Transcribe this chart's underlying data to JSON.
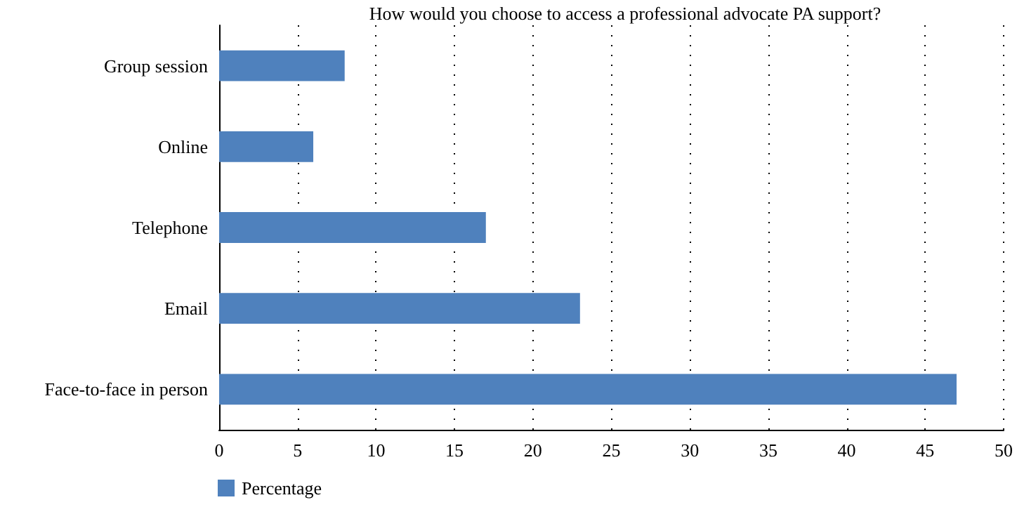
{
  "chart_data": {
    "type": "bar",
    "orientation": "horizontal",
    "title": "How would you choose to access a professional advocate PA support?",
    "categories": [
      "Group session",
      "Online",
      "Telephone",
      "Email",
      "Face-to-face in person"
    ],
    "series": [
      {
        "name": "Percentage",
        "color": "#4f81bd",
        "values": [
          8,
          6,
          17,
          23,
          47
        ]
      }
    ],
    "xlim": [
      0,
      50
    ],
    "xticks": [
      0,
      5,
      10,
      15,
      20,
      25,
      30,
      35,
      40,
      45,
      50
    ],
    "grid": "x",
    "legend": "bottom left"
  }
}
